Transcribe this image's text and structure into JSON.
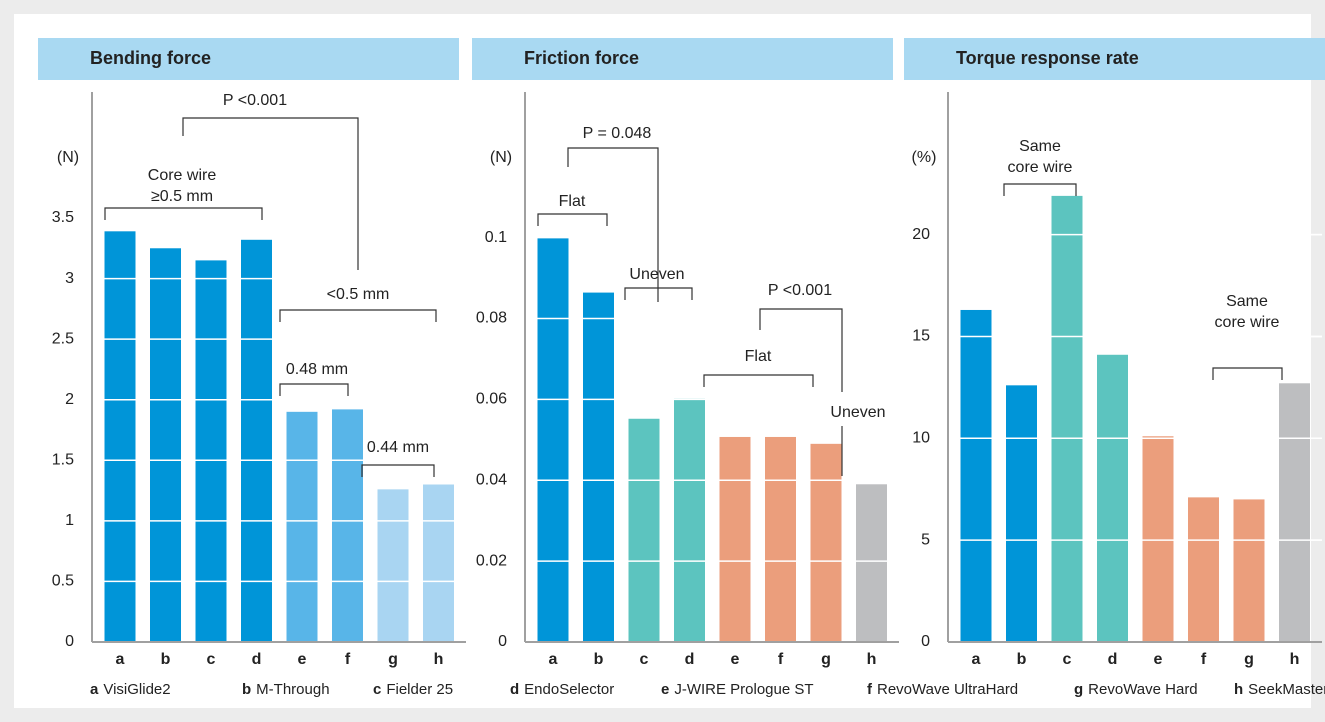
{
  "chart_data": [
    {
      "type": "bar",
      "title": "Bending force",
      "y_label": "(N)",
      "categories": [
        "a",
        "b",
        "c",
        "d",
        "e",
        "f",
        "g",
        "h"
      ],
      "values": [
        3.39,
        3.25,
        3.15,
        3.32,
        1.9,
        1.92,
        1.26,
        1.3
      ],
      "colors": [
        "#0095d8",
        "#0095d8",
        "#0095d8",
        "#0095d8",
        "#58b5e8",
        "#58b5e8",
        "#a9d5f2",
        "#a9d5f2"
      ],
      "ylim": [
        0,
        4.54
      ],
      "yticks": [
        0,
        0.5,
        1,
        1.5,
        2,
        2.5,
        3,
        3.5
      ],
      "annotations": [
        {
          "lines": [
            "P <0.001"
          ]
        },
        {
          "lines": [
            "Core wire",
            "≥0.5 mm"
          ]
        },
        {
          "lines": [
            "<0.5 mm"
          ]
        },
        {
          "lines": [
            "0.48 mm"
          ]
        },
        {
          "lines": [
            "0.44 mm"
          ]
        }
      ]
    },
    {
      "type": "bar",
      "title": "Friction force",
      "y_label": "(N)",
      "categories": [
        "a",
        "b",
        "c",
        "d",
        "e",
        "f",
        "g",
        "h"
      ],
      "values": [
        0.1,
        0.0864,
        0.0552,
        0.0602,
        0.0507,
        0.0507,
        0.049,
        0.039
      ],
      "colors": [
        "#0095d8",
        "#0095d8",
        "#5cc4bf",
        "#5cc4bf",
        "#eb9e7c",
        "#eb9e7c",
        "#eb9e7c",
        "#bdbec0"
      ],
      "ylim": [
        0,
        0.136
      ],
      "yticks": [
        0,
        0.02,
        0.04,
        0.06,
        0.08,
        0.1
      ],
      "annotations": [
        {
          "lines": [
            "P = 0.048"
          ]
        },
        {
          "lines": [
            "Flat"
          ]
        },
        {
          "lines": [
            "Uneven"
          ]
        },
        {
          "lines": [
            "Flat"
          ]
        },
        {
          "lines": [
            "P <0.001"
          ]
        },
        {
          "lines": [
            "Uneven"
          ]
        }
      ]
    },
    {
      "type": "bar",
      "title": "Torque response rate",
      "y_label": "(%)",
      "categories": [
        "a",
        "b",
        "c",
        "d",
        "e",
        "f",
        "g",
        "h"
      ],
      "values": [
        16.3,
        12.6,
        21.9,
        14.1,
        10.1,
        7.1,
        7.0,
        12.7
      ],
      "colors": [
        "#0095d8",
        "#0095d8",
        "#5cc4bf",
        "#5cc4bf",
        "#eb9e7c",
        "#eb9e7c",
        "#eb9e7c",
        "#bdbec0"
      ],
      "ylim": [
        0,
        27
      ],
      "yticks": [
        0,
        5,
        10,
        15,
        20
      ],
      "annotations": [
        {
          "lines": [
            "Same",
            "core wire"
          ]
        },
        {
          "lines": [
            "Same",
            "core wire"
          ]
        }
      ]
    }
  ],
  "legend": [
    {
      "key": "a",
      "name": "VisiGlide2"
    },
    {
      "key": "b",
      "name": "M-Through"
    },
    {
      "key": "c",
      "name": "Fielder 25"
    },
    {
      "key": "d",
      "name": "EndoSelector"
    },
    {
      "key": "e",
      "name": "J-WIRE Prologue ST"
    },
    {
      "key": "f",
      "name": "RevoWave UltraHard"
    },
    {
      "key": "g",
      "name": "RevoWave Hard"
    },
    {
      "key": "h",
      "name": "SeekMaster"
    }
  ]
}
